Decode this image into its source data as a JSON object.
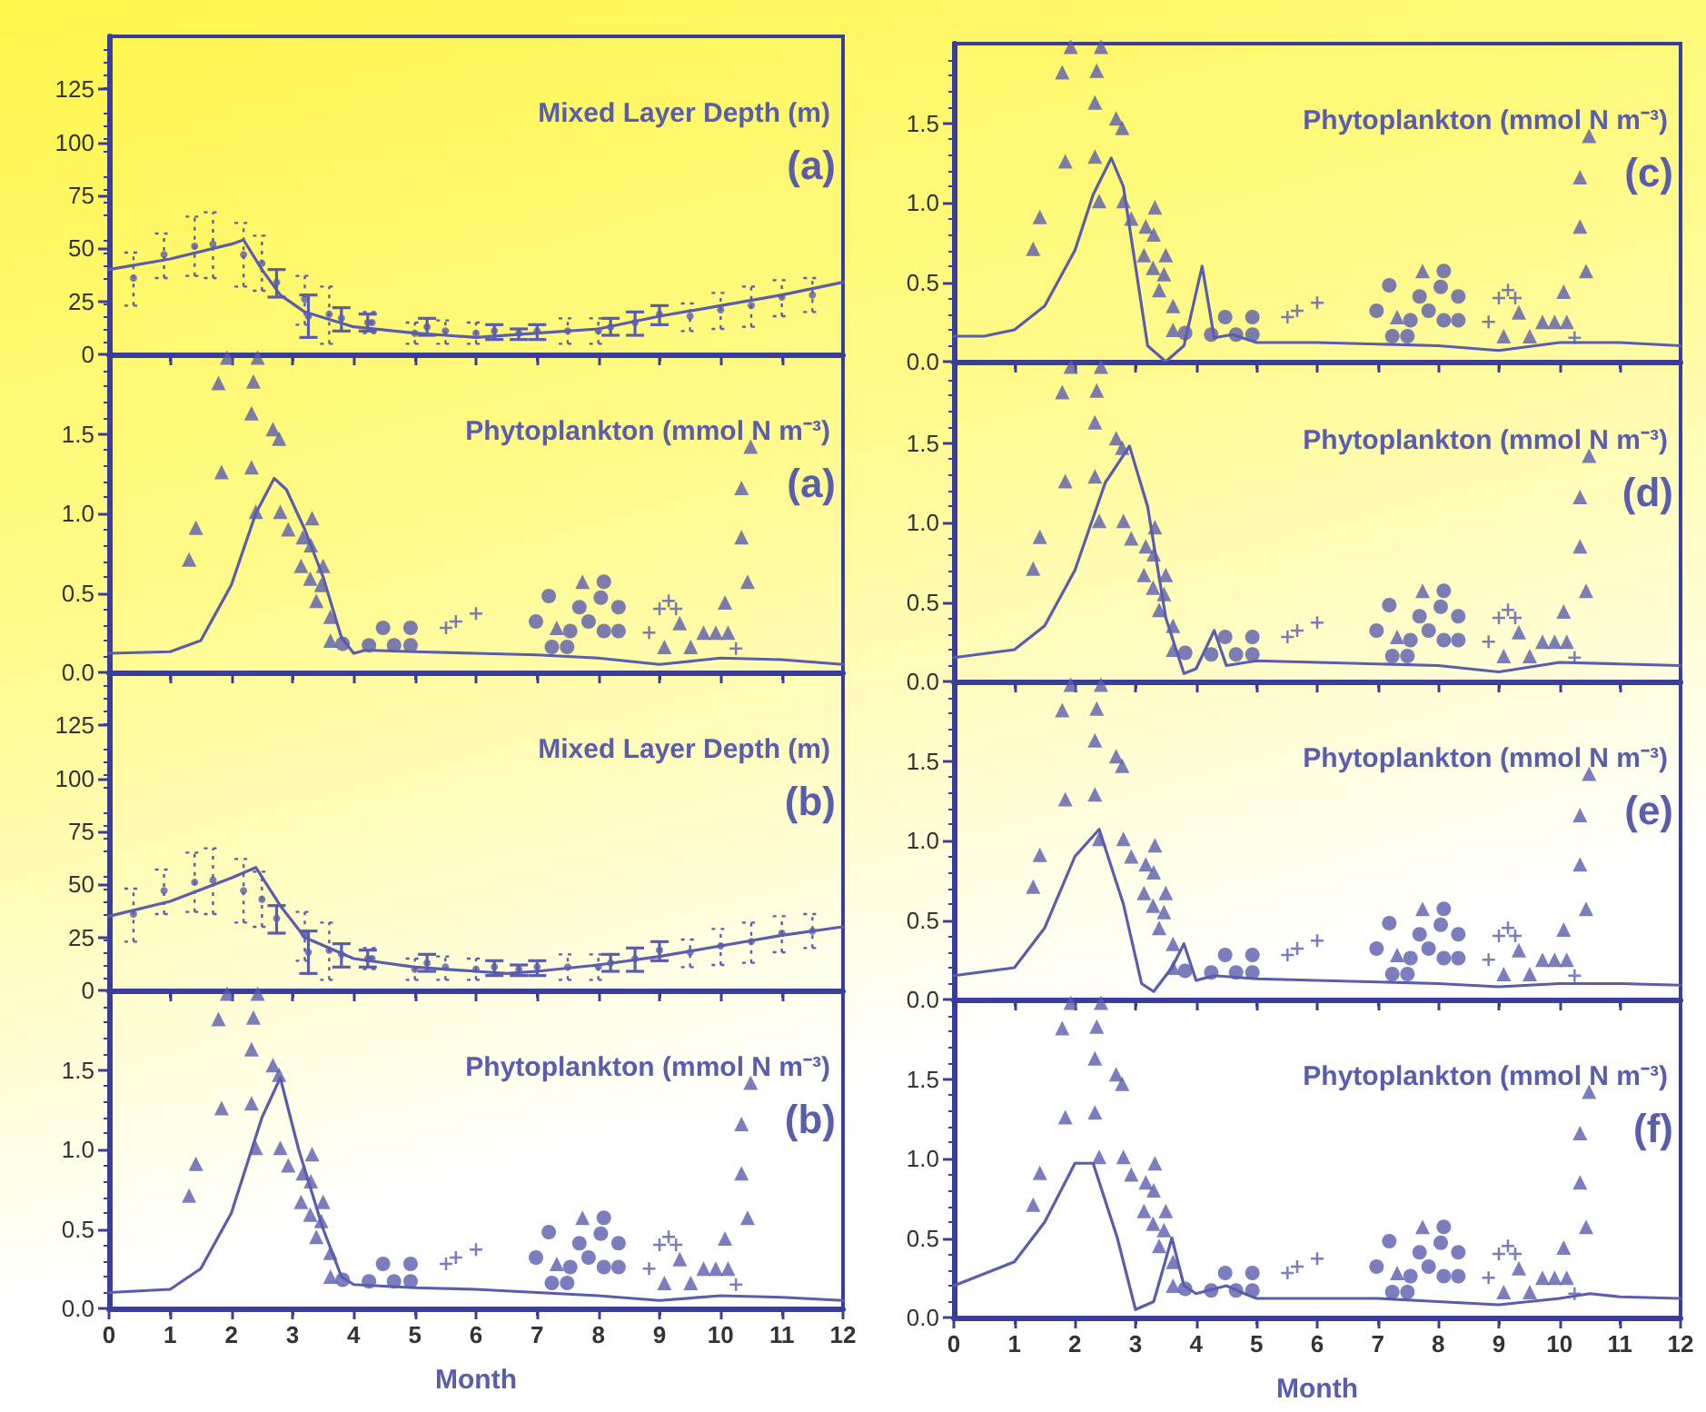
{
  "chart_data": [
    {
      "type": "scatter",
      "title": "Mixed Layer Depth (m)",
      "annotations": [
        "(a)"
      ],
      "xlim": [
        0,
        12
      ],
      "xticks": [
        0,
        1,
        2,
        3,
        4,
        5,
        6,
        7,
        8,
        9,
        10,
        11,
        12
      ],
      "ylim": [
        0,
        150
      ],
      "yticks": [
        0,
        25,
        50,
        75,
        100,
        125
      ],
      "tick_labels": "y",
      "series": [
        {
          "type": "line",
          "color": "#5a5cae",
          "x": [
            0,
            1,
            2,
            2.2,
            2.5,
            2.8,
            3.2,
            4,
            5,
            5.5,
            6,
            7,
            8,
            8.5,
            9,
            10,
            11,
            12
          ],
          "values": [
            40,
            45,
            52,
            54,
            40,
            28,
            20,
            13,
            10,
            9,
            8,
            10,
            12,
            15,
            18,
            23,
            28,
            34
          ]
        },
        {
          "color": "#5a5cae",
          "line_style": "solid",
          "x": [
            2.74,
            3.26,
            3.8,
            4.23,
            5.2,
            6.3,
            6.7,
            7.0,
            8.2,
            8.6,
            9.0
          ],
          "values": [
            34,
            18,
            17,
            15,
            13,
            11,
            10,
            11,
            13,
            15,
            19
          ],
          "errors": [
            [
              27,
              40
            ],
            [
              8,
              28
            ],
            [
              11,
              22
            ],
            [
              11,
              19
            ],
            [
              9,
              17
            ],
            [
              7,
              14
            ],
            [
              7,
              12
            ],
            [
              7,
              14
            ],
            [
              9,
              17
            ],
            [
              9,
              20
            ],
            [
              14,
              23
            ]
          ]
        },
        {
          "color": "#5a5cae",
          "line_style": "dotted",
          "x": [
            0.4,
            0.9,
            1.4,
            1.7,
            2.2,
            2.5,
            3.2,
            3.6,
            4.3,
            5.0,
            5.5,
            6.0,
            7.5,
            8.0,
            9.5,
            10.0,
            10.5,
            11.0,
            11.5
          ],
          "values": [
            36,
            47,
            51,
            52,
            47,
            43,
            26,
            19,
            15,
            10,
            11,
            10,
            11,
            11,
            18,
            21,
            23,
            27,
            28
          ],
          "errors": [
            [
              23,
              48
            ],
            [
              36,
              57
            ],
            [
              37,
              65
            ],
            [
              36,
              67
            ],
            [
              32,
              62
            ],
            [
              30,
              56
            ],
            [
              14,
              37
            ],
            [
              5,
              32
            ],
            [
              10,
              20
            ],
            [
              5,
              15
            ],
            [
              5,
              16
            ],
            [
              5,
              15
            ],
            [
              5,
              17
            ],
            [
              5,
              17
            ],
            [
              11,
              24
            ],
            [
              12,
              29
            ],
            [
              13,
              32
            ],
            [
              18,
              35
            ],
            [
              20,
              36
            ]
          ]
        }
      ]
    },
    {
      "type": "scatter",
      "title": "Phytoplankton (mmol N m⁻³)",
      "annotations": [
        "(a)"
      ],
      "xlim": [
        0,
        12
      ],
      "xticks": [
        0,
        1,
        2,
        3,
        4,
        5,
        6,
        7,
        8,
        9,
        10,
        11,
        12
      ],
      "ylim": [
        0,
        2
      ],
      "yticks": [
        {
          "value": 0,
          "label": "0.0"
        },
        {
          "value": 0.5,
          "label": "0.5"
        },
        {
          "value": 1,
          "label": "1.0"
        },
        {
          "value": 1.5,
          "label": "1.5"
        }
      ],
      "tick_labels": "y",
      "series": [
        {
          "type": "line",
          "color": "#5a5cae",
          "x": [
            0,
            1,
            1.5,
            2,
            2.4,
            2.7,
            2.9,
            3.2,
            3.5,
            3.8,
            4.0,
            4.2,
            5,
            6,
            7,
            8,
            9,
            10,
            11,
            12
          ],
          "values": [
            0.12,
            0.13,
            0.2,
            0.55,
            1.0,
            1.22,
            1.15,
            0.9,
            0.6,
            0.22,
            0.12,
            0.14,
            0.13,
            0.12,
            0.11,
            0.09,
            0.05,
            0.09,
            0.08,
            0.05
          ]
        },
        {
          "color": "#5a5cae",
          "marker": "triangle",
          "x": [
            1.31,
            1.42,
            1.79,
            1.84,
            1.93,
            2.36,
            2.43,
            2.4,
            2.68,
            2.78,
            3.32,
            3.3,
            3.47,
            3.62
          ],
          "values": [
            0.71,
            0.91,
            1.82,
            1.26,
            1.98,
            1.83,
            1.98,
            1.01,
            1.53,
            1.47,
            0.97,
            0.8,
            0.55,
            0.35
          ]
        },
        {
          "color": "#5a5cae",
          "marker": "triangle",
          "x": [
            2.33,
            2.33,
            2.8,
            2.93,
            3.17,
            3.14,
            3.29,
            3.5,
            3.39,
            3.62,
            7.32,
            7.74,
            10.34,
            10.34,
            10.44,
            10.49
          ],
          "values": [
            1.63,
            1.29,
            1.01,
            0.9,
            0.85,
            0.67,
            0.59,
            0.67,
            0.45,
            0.2,
            0.28,
            0.57,
            1.16,
            0.85,
            0.57,
            1.42
          ]
        },
        {
          "color": "#5a5cae",
          "marker": "circle",
          "x": [
            3.82,
            4.25,
            4.48,
            4.66,
            4.93,
            4.93
          ],
          "values": [
            0.18,
            0.17,
            0.28,
            0.17,
            0.28,
            0.17
          ]
        },
        {
          "color": "#5a5cae",
          "marker": "cross",
          "x": [
            5.51,
            5.67,
            6.0
          ],
          "values": [
            0.28,
            0.32,
            0.37
          ]
        },
        {
          "color": "#5a5cae",
          "marker": "circle",
          "x": [
            6.98,
            7.19,
            7.24,
            7.49,
            7.54,
            7.69,
            7.84,
            8.04,
            8.09,
            8.09,
            8.33,
            8.33
          ],
          "values": [
            0.32,
            0.48,
            0.16,
            0.16,
            0.26,
            0.41,
            0.32,
            0.47,
            0.57,
            0.26,
            0.26,
            0.41
          ]
        },
        {
          "color": "#5a5cae",
          "marker": "cross",
          "x": [
            8.83,
            9.0,
            9.15,
            9.27,
            10.25
          ],
          "values": [
            0.25,
            0.4,
            0.45,
            0.4,
            0.15
          ]
        },
        {
          "color": "#5a5cae",
          "marker": "triangle",
          "x": [
            9.08,
            9.33,
            9.51,
            9.72,
            9.92,
            10.12,
            10.07
          ],
          "values": [
            0.16,
            0.31,
            0.16,
            0.25,
            0.25,
            0.25,
            0.44
          ]
        }
      ]
    },
    {
      "type": "scatter",
      "title": "Mixed Layer Depth (m)",
      "annotations": [
        "(b)"
      ],
      "xlim": [
        0,
        12
      ],
      "xticks": [
        0,
        1,
        2,
        3,
        4,
        5,
        6,
        7,
        8,
        9,
        10,
        11,
        12
      ],
      "ylim": [
        0,
        150
      ],
      "yticks": [
        0,
        25,
        50,
        75,
        100,
        125
      ],
      "tick_labels": "y",
      "series": [
        {
          "type": "line",
          "color": "#5a5cae",
          "x": [
            0,
            1,
            2,
            2.4,
            2.8,
            3.2,
            4,
            5,
            6,
            6.5,
            7,
            8,
            9,
            10,
            11,
            12
          ],
          "values": [
            35,
            42,
            53,
            58,
            40,
            25,
            15,
            11,
            9,
            8,
            9,
            12,
            16,
            21,
            26,
            30
          ]
        },
        {
          "color": "#5a5cae",
          "line_style": "solid",
          "x": [
            2.74,
            3.26,
            3.8,
            4.23,
            5.2,
            6.3,
            6.7,
            7.0,
            8.2,
            8.6,
            9.0
          ],
          "values": [
            34,
            18,
            17,
            15,
            13,
            11,
            10,
            11,
            13,
            15,
            19
          ],
          "errors": [
            [
              27,
              40
            ],
            [
              8,
              28
            ],
            [
              11,
              22
            ],
            [
              11,
              19
            ],
            [
              9,
              17
            ],
            [
              7,
              14
            ],
            [
              7,
              12
            ],
            [
              7,
              14
            ],
            [
              9,
              17
            ],
            [
              9,
              20
            ],
            [
              14,
              23
            ]
          ]
        },
        {
          "color": "#5a5cae",
          "line_style": "dotted",
          "x": [
            0.4,
            0.9,
            1.4,
            1.7,
            2.2,
            2.5,
            3.2,
            3.6,
            4.3,
            5.0,
            5.5,
            6.0,
            7.5,
            8.0,
            9.5,
            10.0,
            10.5,
            11.0,
            11.5
          ],
          "values": [
            36,
            47,
            51,
            52,
            47,
            43,
            26,
            19,
            15,
            10,
            11,
            10,
            11,
            11,
            18,
            21,
            23,
            27,
            28
          ],
          "errors": [
            [
              23,
              48
            ],
            [
              36,
              57
            ],
            [
              37,
              65
            ],
            [
              36,
              67
            ],
            [
              32,
              62
            ],
            [
              30,
              56
            ],
            [
              14,
              37
            ],
            [
              5,
              32
            ],
            [
              10,
              20
            ],
            [
              5,
              15
            ],
            [
              5,
              16
            ],
            [
              5,
              15
            ],
            [
              5,
              17
            ],
            [
              5,
              17
            ],
            [
              11,
              24
            ],
            [
              12,
              29
            ],
            [
              13,
              32
            ],
            [
              18,
              35
            ],
            [
              20,
              36
            ]
          ]
        }
      ]
    },
    {
      "type": "scatter",
      "title": "Phytoplankton (mmol N m⁻³)",
      "annotations": [
        "(b)"
      ],
      "xlabel": "Month",
      "xlim": [
        0,
        12
      ],
      "xticks": [
        0,
        1,
        2,
        3,
        4,
        5,
        6,
        7,
        8,
        9,
        10,
        11,
        12
      ],
      "ylim": [
        0,
        2
      ],
      "yticks": [
        {
          "value": 0,
          "label": "0.0"
        },
        {
          "value": 0.5,
          "label": "0.5"
        },
        {
          "value": 1,
          "label": "1.0"
        },
        {
          "value": 1.5,
          "label": "1.5"
        }
      ],
      "series": [
        {
          "type": "line",
          "color": "#5a5cae",
          "x": [
            0,
            1,
            1.5,
            2,
            2.5,
            2.8,
            3.1,
            3.5,
            3.8,
            4.0,
            5,
            6,
            7,
            8,
            9,
            10,
            11,
            12
          ],
          "values": [
            0.1,
            0.12,
            0.25,
            0.6,
            1.2,
            1.45,
            1.0,
            0.5,
            0.2,
            0.15,
            0.13,
            0.12,
            0.1,
            0.08,
            0.05,
            0.08,
            0.07,
            0.05
          ]
        },
        {
          "color": "#5a5cae",
          "marker": "triangle",
          "x": [
            1.31,
            1.42,
            1.79,
            1.84,
            1.93,
            2.36,
            2.43,
            2.4,
            2.68,
            2.78,
            3.32,
            3.3,
            3.47,
            3.62
          ],
          "values": [
            0.71,
            0.91,
            1.82,
            1.26,
            1.98,
            1.83,
            1.98,
            1.01,
            1.53,
            1.47,
            0.97,
            0.8,
            0.55,
            0.35
          ]
        },
        {
          "color": "#5a5cae",
          "marker": "triangle",
          "x": [
            2.33,
            2.33,
            2.8,
            2.93,
            3.17,
            3.14,
            3.29,
            3.5,
            3.39,
            3.62,
            7.32,
            7.74,
            10.34,
            10.34,
            10.44,
            10.49
          ],
          "values": [
            1.63,
            1.29,
            1.01,
            0.9,
            0.85,
            0.67,
            0.59,
            0.67,
            0.45,
            0.2,
            0.28,
            0.57,
            1.16,
            0.85,
            0.57,
            1.42
          ]
        },
        {
          "color": "#5a5cae",
          "marker": "circle",
          "x": [
            3.82,
            4.25,
            4.48,
            4.66,
            4.93,
            4.93
          ],
          "values": [
            0.18,
            0.17,
            0.28,
            0.17,
            0.28,
            0.17
          ]
        },
        {
          "color": "#5a5cae",
          "marker": "cross",
          "x": [
            5.51,
            5.67,
            6.0
          ],
          "values": [
            0.28,
            0.32,
            0.37
          ]
        },
        {
          "color": "#5a5cae",
          "marker": "circle",
          "x": [
            6.98,
            7.19,
            7.24,
            7.49,
            7.54,
            7.69,
            7.84,
            8.04,
            8.09,
            8.09,
            8.33,
            8.33
          ],
          "values": [
            0.32,
            0.48,
            0.16,
            0.16,
            0.26,
            0.41,
            0.32,
            0.47,
            0.57,
            0.26,
            0.26,
            0.41
          ]
        },
        {
          "color": "#5a5cae",
          "marker": "cross",
          "x": [
            8.83,
            9.0,
            9.15,
            9.27,
            10.25
          ],
          "values": [
            0.25,
            0.4,
            0.45,
            0.4,
            0.15
          ]
        },
        {
          "color": "#5a5cae",
          "marker": "triangle",
          "x": [
            9.08,
            9.33,
            9.51,
            9.72,
            9.92,
            10.12,
            10.07
          ],
          "values": [
            0.16,
            0.31,
            0.16,
            0.25,
            0.25,
            0.25,
            0.44
          ]
        }
      ]
    },
    {
      "type": "scatter",
      "title": "Phytoplankton (mmol N m⁻³)",
      "annotations": [
        "(c)"
      ],
      "xlim": [
        0,
        12
      ],
      "xticks": [
        0,
        1,
        2,
        3,
        4,
        5,
        6,
        7,
        8,
        9,
        10,
        11,
        12
      ],
      "ylim": [
        0,
        2
      ],
      "yticks": [
        {
          "value": 0,
          "label": "0.0"
        },
        {
          "value": 0.5,
          "label": "0.5"
        },
        {
          "value": 1,
          "label": "1.0"
        },
        {
          "value": 1.5,
          "label": "1.5"
        }
      ],
      "tick_labels": "y",
      "series": [
        {
          "type": "line",
          "color": "#5a5cae",
          "x": [
            0,
            0.5,
            1,
            1.5,
            2,
            2.3,
            2.6,
            2.8,
            3.0,
            3.2,
            3.5,
            3.8,
            4.1,
            4.3,
            4.6,
            5,
            6,
            7,
            8,
            9,
            10,
            11,
            12
          ],
          "values": [
            0.16,
            0.16,
            0.2,
            0.35,
            0.7,
            1.05,
            1.28,
            1.1,
            0.6,
            0.1,
            0.0,
            0.1,
            0.6,
            0.15,
            0.17,
            0.12,
            0.12,
            0.11,
            0.1,
            0.07,
            0.12,
            0.12,
            0.1
          ]
        },
        {
          "color": "#5a5cae",
          "marker": "triangle",
          "x": [
            1.31,
            1.42,
            1.79,
            1.84,
            1.93,
            2.36,
            2.43,
            2.4,
            2.68,
            2.78,
            3.32,
            3.3,
            3.47,
            3.62
          ],
          "values": [
            0.71,
            0.91,
            1.82,
            1.26,
            1.98,
            1.83,
            1.98,
            1.01,
            1.53,
            1.47,
            0.97,
            0.8,
            0.55,
            0.35
          ]
        },
        {
          "color": "#5a5cae",
          "marker": "triangle",
          "x": [
            2.33,
            2.33,
            2.8,
            2.93,
            3.17,
            3.14,
            3.29,
            3.5,
            3.39,
            3.62,
            7.32,
            7.74,
            10.34,
            10.34,
            10.44,
            10.49
          ],
          "values": [
            1.63,
            1.29,
            1.01,
            0.9,
            0.85,
            0.67,
            0.59,
            0.67,
            0.45,
            0.2,
            0.28,
            0.57,
            1.16,
            0.85,
            0.57,
            1.42
          ]
        },
        {
          "color": "#5a5cae",
          "marker": "circle",
          "x": [
            3.82,
            4.25,
            4.48,
            4.66,
            4.93,
            4.93
          ],
          "values": [
            0.18,
            0.17,
            0.28,
            0.17,
            0.28,
            0.17
          ]
        },
        {
          "color": "#5a5cae",
          "marker": "cross",
          "x": [
            5.51,
            5.67,
            6.0
          ],
          "values": [
            0.28,
            0.32,
            0.37
          ]
        },
        {
          "color": "#5a5cae",
          "marker": "circle",
          "x": [
            6.98,
            7.19,
            7.24,
            7.49,
            7.54,
            7.69,
            7.84,
            8.04,
            8.09,
            8.09,
            8.33,
            8.33
          ],
          "values": [
            0.32,
            0.48,
            0.16,
            0.16,
            0.26,
            0.41,
            0.32,
            0.47,
            0.57,
            0.26,
            0.26,
            0.41
          ]
        },
        {
          "color": "#5a5cae",
          "marker": "cross",
          "x": [
            8.83,
            9.0,
            9.15,
            9.27,
            10.25
          ],
          "values": [
            0.25,
            0.4,
            0.45,
            0.4,
            0.15
          ]
        },
        {
          "color": "#5a5cae",
          "marker": "triangle",
          "x": [
            9.08,
            9.33,
            9.51,
            9.72,
            9.92,
            10.12,
            10.07
          ],
          "values": [
            0.16,
            0.31,
            0.16,
            0.25,
            0.25,
            0.25,
            0.44
          ]
        }
      ]
    },
    {
      "type": "scatter",
      "title": "Phytoplankton (mmol N m⁻³)",
      "annotations": [
        "(d)"
      ],
      "xlim": [
        0,
        12
      ],
      "xticks": [
        0,
        1,
        2,
        3,
        4,
        5,
        6,
        7,
        8,
        9,
        10,
        11,
        12
      ],
      "ylim": [
        0,
        2
      ],
      "yticks": [
        {
          "value": 0,
          "label": "0.0"
        },
        {
          "value": 0.5,
          "label": "0.5"
        },
        {
          "value": 1,
          "label": "1.0"
        },
        {
          "value": 1.5,
          "label": "1.5"
        }
      ],
      "tick_labels": "y",
      "series": [
        {
          "type": "line",
          "color": "#5a5cae",
          "x": [
            0,
            1,
            1.5,
            2,
            2.5,
            2.9,
            3.2,
            3.5,
            3.8,
            4.0,
            4.3,
            4.5,
            5,
            6,
            7,
            8,
            9,
            10,
            11,
            12
          ],
          "values": [
            0.15,
            0.2,
            0.35,
            0.7,
            1.25,
            1.48,
            1.1,
            0.4,
            0.05,
            0.08,
            0.32,
            0.1,
            0.13,
            0.12,
            0.11,
            0.1,
            0.06,
            0.12,
            0.11,
            0.1
          ]
        },
        {
          "color": "#5a5cae",
          "marker": "triangle",
          "x": [
            1.31,
            1.42,
            1.79,
            1.84,
            1.93,
            2.36,
            2.43,
            2.4,
            2.68,
            2.78,
            3.32,
            3.3,
            3.47,
            3.62
          ],
          "values": [
            0.71,
            0.91,
            1.82,
            1.26,
            1.98,
            1.83,
            1.98,
            1.01,
            1.53,
            1.47,
            0.97,
            0.8,
            0.55,
            0.35
          ]
        },
        {
          "color": "#5a5cae",
          "marker": "triangle",
          "x": [
            2.33,
            2.33,
            2.8,
            2.93,
            3.17,
            3.14,
            3.29,
            3.5,
            3.39,
            3.62,
            7.32,
            7.74,
            10.34,
            10.34,
            10.44,
            10.49
          ],
          "values": [
            1.63,
            1.29,
            1.01,
            0.9,
            0.85,
            0.67,
            0.59,
            0.67,
            0.45,
            0.2,
            0.28,
            0.57,
            1.16,
            0.85,
            0.57,
            1.42
          ]
        },
        {
          "color": "#5a5cae",
          "marker": "circle",
          "x": [
            3.82,
            4.25,
            4.48,
            4.66,
            4.93,
            4.93
          ],
          "values": [
            0.18,
            0.17,
            0.28,
            0.17,
            0.28,
            0.17
          ]
        },
        {
          "color": "#5a5cae",
          "marker": "cross",
          "x": [
            5.51,
            5.67,
            6.0
          ],
          "values": [
            0.28,
            0.32,
            0.37
          ]
        },
        {
          "color": "#5a5cae",
          "marker": "circle",
          "x": [
            6.98,
            7.19,
            7.24,
            7.49,
            7.54,
            7.69,
            7.84,
            8.04,
            8.09,
            8.09,
            8.33,
            8.33
          ],
          "values": [
            0.32,
            0.48,
            0.16,
            0.16,
            0.26,
            0.41,
            0.32,
            0.47,
            0.57,
            0.26,
            0.26,
            0.41
          ]
        },
        {
          "color": "#5a5cae",
          "marker": "cross",
          "x": [
            8.83,
            9.0,
            9.15,
            9.27,
            10.25
          ],
          "values": [
            0.25,
            0.4,
            0.45,
            0.4,
            0.15
          ]
        },
        {
          "color": "#5a5cae",
          "marker": "triangle",
          "x": [
            9.08,
            9.33,
            9.51,
            9.72,
            9.92,
            10.12,
            10.07
          ],
          "values": [
            0.16,
            0.31,
            0.16,
            0.25,
            0.25,
            0.25,
            0.44
          ]
        }
      ]
    },
    {
      "type": "scatter",
      "title": "Phytoplankton (mmol N m⁻³)",
      "annotations": [
        "(e)"
      ],
      "xlim": [
        0,
        12
      ],
      "xticks": [
        0,
        1,
        2,
        3,
        4,
        5,
        6,
        7,
        8,
        9,
        10,
        11,
        12
      ],
      "ylim": [
        0,
        2
      ],
      "yticks": [
        {
          "value": 0,
          "label": "0.0"
        },
        {
          "value": 0.5,
          "label": "0.5"
        },
        {
          "value": 1,
          "label": "1.0"
        },
        {
          "value": 1.5,
          "label": "1.5"
        }
      ],
      "tick_labels": "y",
      "series": [
        {
          "type": "line",
          "color": "#5a5cae",
          "x": [
            0,
            1,
            1.5,
            2,
            2.4,
            2.8,
            3.1,
            3.3,
            3.6,
            3.8,
            4.0,
            4.3,
            5,
            6,
            7,
            8,
            9,
            10,
            11,
            12
          ],
          "values": [
            0.15,
            0.2,
            0.45,
            0.9,
            1.07,
            0.6,
            0.1,
            0.05,
            0.2,
            0.35,
            0.12,
            0.15,
            0.13,
            0.12,
            0.11,
            0.1,
            0.08,
            0.1,
            0.1,
            0.09
          ]
        },
        {
          "color": "#5a5cae",
          "marker": "triangle",
          "x": [
            1.31,
            1.42,
            1.79,
            1.84,
            1.93,
            2.36,
            2.43,
            2.4,
            2.68,
            2.78,
            3.32,
            3.3,
            3.47,
            3.62
          ],
          "values": [
            0.71,
            0.91,
            1.82,
            1.26,
            1.98,
            1.83,
            1.98,
            1.01,
            1.53,
            1.47,
            0.97,
            0.8,
            0.55,
            0.35
          ]
        },
        {
          "color": "#5a5cae",
          "marker": "triangle",
          "x": [
            2.33,
            2.33,
            2.8,
            2.93,
            3.17,
            3.14,
            3.29,
            3.5,
            3.39,
            3.62,
            7.32,
            7.74,
            10.34,
            10.34,
            10.44,
            10.49
          ],
          "values": [
            1.63,
            1.29,
            1.01,
            0.9,
            0.85,
            0.67,
            0.59,
            0.67,
            0.45,
            0.2,
            0.28,
            0.57,
            1.16,
            0.85,
            0.57,
            1.42
          ]
        },
        {
          "color": "#5a5cae",
          "marker": "circle",
          "x": [
            3.82,
            4.25,
            4.48,
            4.66,
            4.93,
            4.93
          ],
          "values": [
            0.18,
            0.17,
            0.28,
            0.17,
            0.28,
            0.17
          ]
        },
        {
          "color": "#5a5cae",
          "marker": "cross",
          "x": [
            5.51,
            5.67,
            6.0
          ],
          "values": [
            0.28,
            0.32,
            0.37
          ]
        },
        {
          "color": "#5a5cae",
          "marker": "circle",
          "x": [
            6.98,
            7.19,
            7.24,
            7.49,
            7.54,
            7.69,
            7.84,
            8.04,
            8.09,
            8.09,
            8.33,
            8.33
          ],
          "values": [
            0.32,
            0.48,
            0.16,
            0.16,
            0.26,
            0.41,
            0.32,
            0.47,
            0.57,
            0.26,
            0.26,
            0.41
          ]
        },
        {
          "color": "#5a5cae",
          "marker": "cross",
          "x": [
            8.83,
            9.0,
            9.15,
            9.27,
            10.25
          ],
          "values": [
            0.25,
            0.4,
            0.45,
            0.4,
            0.15
          ]
        },
        {
          "color": "#5a5cae",
          "marker": "triangle",
          "x": [
            9.08,
            9.33,
            9.51,
            9.72,
            9.92,
            10.12,
            10.07
          ],
          "values": [
            0.16,
            0.31,
            0.16,
            0.25,
            0.25,
            0.25,
            0.44
          ]
        }
      ]
    },
    {
      "type": "scatter",
      "title": "Phytoplankton (mmol N m⁻³)",
      "annotations": [
        "(f)"
      ],
      "xlabel": "Month",
      "xlim": [
        0,
        12
      ],
      "xticks": [
        0,
        1,
        2,
        3,
        4,
        5,
        6,
        7,
        8,
        9,
        10,
        11,
        12
      ],
      "ylim": [
        0,
        2
      ],
      "yticks": [
        {
          "value": 0,
          "label": "0.0"
        },
        {
          "value": 0.5,
          "label": "0.5"
        },
        {
          "value": 1,
          "label": "1.0"
        },
        {
          "value": 1.5,
          "label": "1.5"
        }
      ],
      "series": [
        {
          "type": "line",
          "color": "#5a5cae",
          "x": [
            0,
            1,
            1.5,
            2,
            2.3,
            2.7,
            3.0,
            3.3,
            3.6,
            3.8,
            4.0,
            4.5,
            4.8,
            5,
            6,
            7,
            8,
            9,
            10,
            10.5,
            11,
            12
          ],
          "values": [
            0.2,
            0.35,
            0.6,
            0.97,
            0.97,
            0.5,
            0.05,
            0.1,
            0.5,
            0.2,
            0.15,
            0.2,
            0.15,
            0.12,
            0.12,
            0.12,
            0.1,
            0.08,
            0.12,
            0.15,
            0.13,
            0.12
          ]
        },
        {
          "color": "#5a5cae",
          "marker": "triangle",
          "x": [
            1.31,
            1.42,
            1.79,
            1.84,
            1.93,
            2.36,
            2.43,
            2.4,
            2.68,
            2.78,
            3.32,
            3.3,
            3.47,
            3.62
          ],
          "values": [
            0.71,
            0.91,
            1.82,
            1.26,
            1.98,
            1.83,
            1.98,
            1.01,
            1.53,
            1.47,
            0.97,
            0.8,
            0.55,
            0.35
          ]
        },
        {
          "color": "#5a5cae",
          "marker": "triangle",
          "x": [
            2.33,
            2.33,
            2.8,
            2.93,
            3.17,
            3.14,
            3.29,
            3.5,
            3.39,
            3.62,
            7.32,
            7.74,
            10.34,
            10.34,
            10.44,
            10.49
          ],
          "values": [
            1.63,
            1.29,
            1.01,
            0.9,
            0.85,
            0.67,
            0.59,
            0.67,
            0.45,
            0.2,
            0.28,
            0.57,
            1.16,
            0.85,
            0.57,
            1.42
          ]
        },
        {
          "color": "#5a5cae",
          "marker": "circle",
          "x": [
            3.82,
            4.25,
            4.48,
            4.66,
            4.93,
            4.93
          ],
          "values": [
            0.18,
            0.17,
            0.28,
            0.17,
            0.28,
            0.17
          ]
        },
        {
          "color": "#5a5cae",
          "marker": "cross",
          "x": [
            5.51,
            5.67,
            6.0
          ],
          "values": [
            0.28,
            0.32,
            0.37
          ]
        },
        {
          "color": "#5a5cae",
          "marker": "circle",
          "x": [
            6.98,
            7.19,
            7.24,
            7.49,
            7.54,
            7.69,
            7.84,
            8.04,
            8.09,
            8.09,
            8.33,
            8.33
          ],
          "values": [
            0.32,
            0.48,
            0.16,
            0.16,
            0.26,
            0.41,
            0.32,
            0.47,
            0.57,
            0.26,
            0.26,
            0.41
          ]
        },
        {
          "color": "#5a5cae",
          "marker": "cross",
          "x": [
            8.83,
            9.0,
            9.15,
            9.27,
            10.25
          ],
          "values": [
            0.25,
            0.4,
            0.45,
            0.4,
            0.15
          ]
        },
        {
          "color": "#5a5cae",
          "marker": "triangle",
          "x": [
            9.08,
            9.33,
            9.51,
            9.72,
            9.92,
            10.12,
            10.07
          ],
          "values": [
            0.16,
            0.31,
            0.16,
            0.25,
            0.25,
            0.25,
            0.44
          ]
        }
      ]
    }
  ]
}
